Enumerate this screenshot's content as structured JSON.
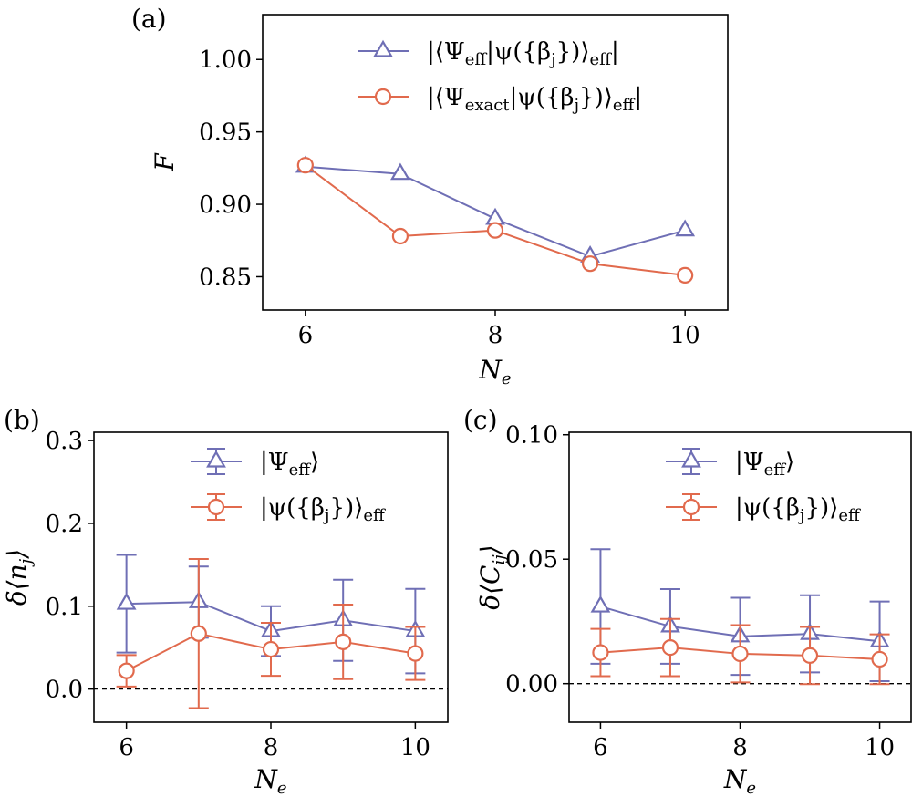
{
  "colors": {
    "eff": "#6f6fb5",
    "exact": "#e16a4d"
  },
  "chart_data": [
    {
      "panel": "(a)",
      "type": "line",
      "xlabel": "N_e",
      "ylabel": "F",
      "x": [
        6,
        7,
        8,
        9,
        10
      ],
      "xlim": [
        5.55,
        10.45
      ],
      "ylim": [
        0.827,
        1.031
      ],
      "xticks": [
        "6",
        "8",
        "10"
      ],
      "yticks": [
        "0.85",
        "0.90",
        "0.95",
        "1.00"
      ],
      "legend_position": "top-right",
      "series": [
        {
          "name": "|⟨Ψ_eff|ψ({β_j})⟩_eff|",
          "marker": "triangle",
          "color": "eff",
          "values": [
            0.926,
            0.921,
            0.89,
            0.864,
            0.882
          ]
        },
        {
          "name": "|⟨Ψ_exact|ψ({β_j})⟩_eff|",
          "marker": "circle",
          "color": "exact",
          "values": [
            0.927,
            0.878,
            0.882,
            0.859,
            0.851
          ]
        }
      ]
    },
    {
      "panel": "(b)",
      "type": "line",
      "xlabel": "N_e",
      "ylabel": "δ⟨n_j⟩",
      "x": [
        6,
        7,
        8,
        9,
        10
      ],
      "xlim": [
        5.55,
        10.45
      ],
      "ylim": [
        -0.04,
        0.31
      ],
      "xticks": [
        "6",
        "8",
        "10"
      ],
      "yticks": [
        "0.0",
        "0.1",
        "0.2",
        "0.3"
      ],
      "reference_line": 0,
      "legend_position": "top-center",
      "series": [
        {
          "name": "|Ψ_eff⟩",
          "marker": "triangle",
          "color": "eff",
          "values": [
            0.103,
            0.105,
            0.07,
            0.083,
            0.07
          ],
          "errors": [
            0.059,
            0.043,
            0.03,
            0.049,
            0.051
          ]
        },
        {
          "name": "|ψ({β_j})⟩_eff",
          "marker": "circle",
          "color": "exact",
          "values": [
            0.022,
            0.067,
            0.048,
            0.057,
            0.043
          ],
          "errors": [
            0.019,
            0.09,
            0.032,
            0.045,
            0.032
          ]
        }
      ]
    },
    {
      "panel": "(c)",
      "type": "line",
      "xlabel": "N_e",
      "ylabel": "δ⟨C_ij⟩",
      "x": [
        6,
        7,
        8,
        9,
        10
      ],
      "xlim": [
        5.55,
        10.45
      ],
      "ylim": [
        -0.0155,
        0.101
      ],
      "xticks": [
        "6",
        "8",
        "10"
      ],
      "yticks": [
        "0.00",
        "0.05",
        "0.10"
      ],
      "reference_line": 0,
      "legend_position": "top-center",
      "series": [
        {
          "name": "|Ψ_eff⟩",
          "marker": "triangle",
          "color": "eff",
          "values": [
            0.031,
            0.023,
            0.019,
            0.02,
            0.017
          ],
          "errors": [
            0.023,
            0.015,
            0.0155,
            0.0155,
            0.016
          ]
        },
        {
          "name": "|ψ({β_j})⟩_eff",
          "marker": "circle",
          "color": "exact",
          "values": [
            0.0125,
            0.0145,
            0.012,
            0.0113,
            0.0098
          ],
          "errors": [
            0.0095,
            0.0115,
            0.0115,
            0.0115,
            0.01
          ]
        }
      ]
    }
  ]
}
